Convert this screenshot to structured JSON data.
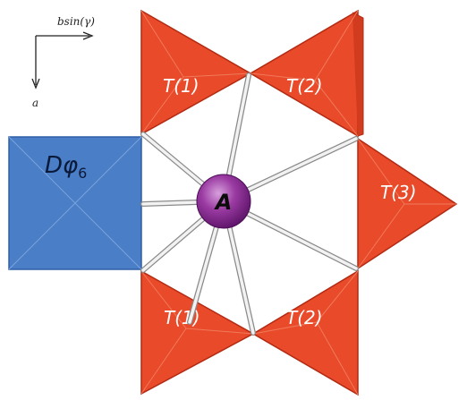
{
  "axes": {
    "horizontal_label": "bsin(γ)",
    "vertical_label": "a"
  },
  "octahedron": {
    "label_main": "Dφ",
    "label_sub": "6",
    "color": "#4a7fc8"
  },
  "center_atom": {
    "label": "A",
    "color": "#8e2f96"
  },
  "tetrahedra": [
    {
      "id": "t1-top",
      "label": "T(1)"
    },
    {
      "id": "t2-top",
      "label": "T(2)"
    },
    {
      "id": "t3",
      "label": "T(3)"
    },
    {
      "id": "t1-bottom",
      "label": "T(1)"
    },
    {
      "id": "t2-bottom",
      "label": "T(2)"
    }
  ],
  "colors": {
    "tetra_fill": "#e84a2a",
    "tetra_edge": "#b32a12",
    "bond": "#e6e6e6"
  }
}
